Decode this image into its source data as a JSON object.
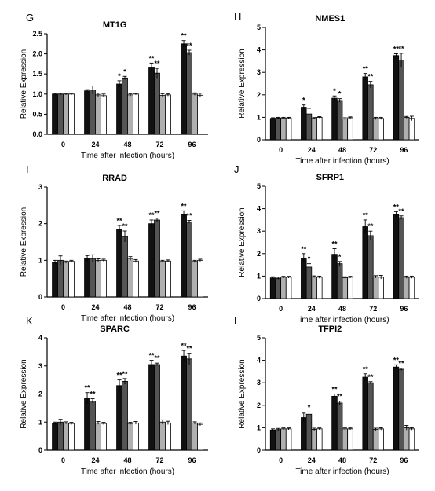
{
  "chart_data": [
    {
      "type": "bar",
      "panel": "G",
      "title": "MT1G",
      "xlabel": "Time after infection (hours)",
      "ylabel": "Relative Expression",
      "categories": [
        "0",
        "24",
        "48",
        "72",
        "96"
      ],
      "ylim": [
        0,
        2.5
      ],
      "yticks": [
        "0.0",
        "0.5",
        "1.0",
        "1.5",
        "2.0",
        "2.5"
      ],
      "series": [
        {
          "color": "#111111",
          "values": [
            1.0,
            1.08,
            1.25,
            1.67,
            2.25
          ],
          "errors": [
            0.02,
            0.03,
            0.08,
            0.1,
            0.08
          ]
        },
        {
          "color": "#555555",
          "values": [
            1.0,
            1.1,
            1.4,
            1.52,
            2.03
          ],
          "errors": [
            0.02,
            0.1,
            0.04,
            0.12,
            0.06
          ]
        },
        {
          "color": "#b0b0b0",
          "values": [
            1.0,
            0.98,
            0.98,
            0.97,
            1.0
          ],
          "errors": [
            0.02,
            0.04,
            0.03,
            0.04,
            0.03
          ]
        },
        {
          "color": "#ffffff",
          "values": [
            1.0,
            0.96,
            1.0,
            0.98,
            0.97
          ],
          "errors": [
            0.02,
            0.04,
            0.02,
            0.03,
            0.05
          ]
        }
      ],
      "annotations": [
        {
          "category": 2,
          "series": 0,
          "text": "*"
        },
        {
          "category": 2,
          "series": 1,
          "text": "*"
        },
        {
          "category": 3,
          "series": 0,
          "text": "**"
        },
        {
          "category": 3,
          "series": 1,
          "text": "**"
        },
        {
          "category": 4,
          "series": 0,
          "text": "**"
        },
        {
          "category": 4,
          "series": 1,
          "text": "**"
        }
      ]
    },
    {
      "type": "bar",
      "panel": "H",
      "title": "NMES1",
      "xlabel": "Time after infection (hours)",
      "ylabel": "Relative Expression",
      "categories": [
        "0",
        "24",
        "48",
        "72",
        "96"
      ],
      "ylim": [
        0,
        5
      ],
      "yticks": [
        "0",
        "1",
        "2",
        "3",
        "4",
        "5"
      ],
      "series": [
        {
          "color": "#111111",
          "values": [
            0.95,
            1.45,
            1.85,
            2.8,
            3.75
          ],
          "errors": [
            0.03,
            0.1,
            0.1,
            0.15,
            0.08
          ]
        },
        {
          "color": "#555555",
          "values": [
            0.97,
            1.15,
            1.75,
            2.45,
            3.55
          ],
          "errors": [
            0.03,
            0.25,
            0.08,
            0.15,
            0.3
          ]
        },
        {
          "color": "#b0b0b0",
          "values": [
            0.97,
            0.95,
            0.93,
            0.95,
            1.0
          ],
          "errors": [
            0.03,
            0.04,
            0.05,
            0.05,
            0.04
          ]
        },
        {
          "color": "#ffffff",
          "values": [
            0.97,
            1.0,
            0.98,
            0.95,
            0.95
          ],
          "errors": [
            0.03,
            0.03,
            0.04,
            0.05,
            0.1
          ]
        }
      ],
      "annotations": [
        {
          "category": 1,
          "series": 0,
          "text": "*"
        },
        {
          "category": 2,
          "series": 0,
          "text": "*"
        },
        {
          "category": 2,
          "series": 1,
          "text": "*"
        },
        {
          "category": 3,
          "series": 0,
          "text": "**"
        },
        {
          "category": 3,
          "series": 1,
          "text": "**"
        },
        {
          "category": 4,
          "series": 0,
          "text": "**"
        },
        {
          "category": 4,
          "series": 1,
          "text": "**"
        }
      ]
    },
    {
      "type": "bar",
      "panel": "I",
      "title": "RRAD",
      "xlabel": "Time after infection (hours)",
      "ylabel": "Relative Expression",
      "categories": [
        "0",
        "24",
        "48",
        "72",
        "96"
      ],
      "ylim": [
        0,
        3
      ],
      "yticks": [
        "0",
        "1",
        "2",
        "3"
      ],
      "series": [
        {
          "color": "#111111",
          "values": [
            0.95,
            1.05,
            1.85,
            2.0,
            2.25
          ],
          "errors": [
            0.05,
            0.08,
            0.1,
            0.1,
            0.1
          ]
        },
        {
          "color": "#555555",
          "values": [
            1.0,
            1.05,
            1.65,
            2.1,
            2.05
          ],
          "errors": [
            0.12,
            0.1,
            0.15,
            0.05,
            0.04
          ]
        },
        {
          "color": "#b0b0b0",
          "values": [
            0.95,
            1.0,
            1.05,
            0.97,
            0.97
          ],
          "errors": [
            0.03,
            0.04,
            0.05,
            0.03,
            0.03
          ]
        },
        {
          "color": "#ffffff",
          "values": [
            0.97,
            1.0,
            0.98,
            0.98,
            1.0
          ],
          "errors": [
            0.03,
            0.03,
            0.04,
            0.03,
            0.03
          ]
        }
      ],
      "annotations": [
        {
          "category": 2,
          "series": 0,
          "text": "**"
        },
        {
          "category": 2,
          "series": 1,
          "text": "**"
        },
        {
          "category": 3,
          "series": 0,
          "text": "**"
        },
        {
          "category": 3,
          "series": 1,
          "text": "**"
        },
        {
          "category": 4,
          "series": 0,
          "text": "**"
        },
        {
          "category": 4,
          "series": 1,
          "text": "**"
        }
      ]
    },
    {
      "type": "bar",
      "panel": "J",
      "title": "SFRP1",
      "xlabel": "Time after infection (hours)",
      "ylabel": "Relative Expression",
      "categories": [
        "0",
        "24",
        "48",
        "72",
        "96"
      ],
      "ylim": [
        0,
        5
      ],
      "yticks": [
        "0",
        "1",
        "2",
        "3",
        "4",
        "5"
      ],
      "series": [
        {
          "color": "#111111",
          "values": [
            0.92,
            1.8,
            1.97,
            3.2,
            3.75
          ],
          "errors": [
            0.05,
            0.2,
            0.25,
            0.3,
            0.12
          ]
        },
        {
          "color": "#555555",
          "values": [
            0.9,
            1.4,
            1.55,
            2.8,
            3.6
          ],
          "errors": [
            0.05,
            0.15,
            0.1,
            0.2,
            0.08
          ]
        },
        {
          "color": "#b0b0b0",
          "values": [
            0.95,
            0.97,
            0.93,
            0.97,
            0.95
          ],
          "errors": [
            0.04,
            0.04,
            0.04,
            0.05,
            0.05
          ]
        },
        {
          "color": "#ffffff",
          "values": [
            0.95,
            0.95,
            0.95,
            0.95,
            0.95
          ],
          "errors": [
            0.04,
            0.05,
            0.04,
            0.08,
            0.05
          ]
        }
      ],
      "annotations": [
        {
          "category": 1,
          "series": 0,
          "text": "**"
        },
        {
          "category": 1,
          "series": 1,
          "text": "*"
        },
        {
          "category": 2,
          "series": 0,
          "text": "**"
        },
        {
          "category": 2,
          "series": 1,
          "text": "*"
        },
        {
          "category": 3,
          "series": 0,
          "text": "**"
        },
        {
          "category": 3,
          "series": 1,
          "text": "**"
        },
        {
          "category": 4,
          "series": 0,
          "text": "**"
        },
        {
          "category": 4,
          "series": 1,
          "text": "**"
        }
      ]
    },
    {
      "type": "bar",
      "panel": "K",
      "title": "SPARC",
      "xlabel": "Time after infection (hours)",
      "ylabel": "Relative Expression",
      "categories": [
        "0",
        "24",
        "48",
        "72",
        "96"
      ],
      "ylim": [
        0,
        4
      ],
      "yticks": [
        "0",
        "1",
        "2",
        "3",
        "4"
      ],
      "series": [
        {
          "color": "#111111",
          "values": [
            0.95,
            1.85,
            2.3,
            3.05,
            3.35
          ],
          "errors": [
            0.05,
            0.2,
            0.2,
            0.15,
            0.2
          ]
        },
        {
          "color": "#555555",
          "values": [
            1.0,
            1.75,
            2.45,
            3.05,
            3.25
          ],
          "errors": [
            0.1,
            0.08,
            0.1,
            0.05,
            0.2
          ]
        },
        {
          "color": "#b0b0b0",
          "values": [
            0.97,
            0.97,
            0.95,
            1.0,
            0.97
          ],
          "errors": [
            0.04,
            0.05,
            0.04,
            0.08,
            0.04
          ]
        },
        {
          "color": "#ffffff",
          "values": [
            0.95,
            0.95,
            0.97,
            0.97,
            0.92
          ],
          "errors": [
            0.04,
            0.04,
            0.05,
            0.06,
            0.05
          ]
        }
      ],
      "annotations": [
        {
          "category": 1,
          "series": 0,
          "text": "**"
        },
        {
          "category": 1,
          "series": 1,
          "text": "**"
        },
        {
          "category": 2,
          "series": 0,
          "text": "**"
        },
        {
          "category": 2,
          "series": 1,
          "text": "**"
        },
        {
          "category": 3,
          "series": 0,
          "text": "**"
        },
        {
          "category": 3,
          "series": 1,
          "text": "**"
        },
        {
          "category": 4,
          "series": 0,
          "text": "**"
        },
        {
          "category": 4,
          "series": 1,
          "text": "**"
        }
      ]
    },
    {
      "type": "bar",
      "panel": "L",
      "title": "TFPI2",
      "xlabel": "Time after infection (hours)",
      "ylabel": "Relative Expression",
      "categories": [
        "0",
        "24",
        "48",
        "72",
        "96"
      ],
      "ylim": [
        0,
        5
      ],
      "yticks": [
        "0",
        "1",
        "2",
        "3",
        "4",
        "5"
      ],
      "series": [
        {
          "color": "#111111",
          "values": [
            0.9,
            1.45,
            2.4,
            3.25,
            3.7
          ],
          "errors": [
            0.05,
            0.2,
            0.1,
            0.15,
            0.1
          ]
        },
        {
          "color": "#555555",
          "values": [
            0.92,
            1.6,
            2.1,
            3.0,
            3.6
          ],
          "errors": [
            0.05,
            0.1,
            0.08,
            0.05,
            0.05
          ]
        },
        {
          "color": "#b0b0b0",
          "values": [
            0.95,
            0.93,
            0.95,
            0.93,
            1.0
          ],
          "errors": [
            0.04,
            0.05,
            0.04,
            0.05,
            0.1
          ]
        },
        {
          "color": "#ffffff",
          "values": [
            0.95,
            0.95,
            0.95,
            0.95,
            0.95
          ],
          "errors": [
            0.04,
            0.04,
            0.04,
            0.05,
            0.05
          ]
        }
      ],
      "annotations": [
        {
          "category": 1,
          "series": 1,
          "text": "*"
        },
        {
          "category": 2,
          "series": 0,
          "text": "**"
        },
        {
          "category": 2,
          "series": 1,
          "text": "**"
        },
        {
          "category": 3,
          "series": 0,
          "text": "**"
        },
        {
          "category": 3,
          "series": 1,
          "text": "**"
        },
        {
          "category": 4,
          "series": 0,
          "text": "**"
        },
        {
          "category": 4,
          "series": 1,
          "text": "**"
        }
      ]
    }
  ]
}
